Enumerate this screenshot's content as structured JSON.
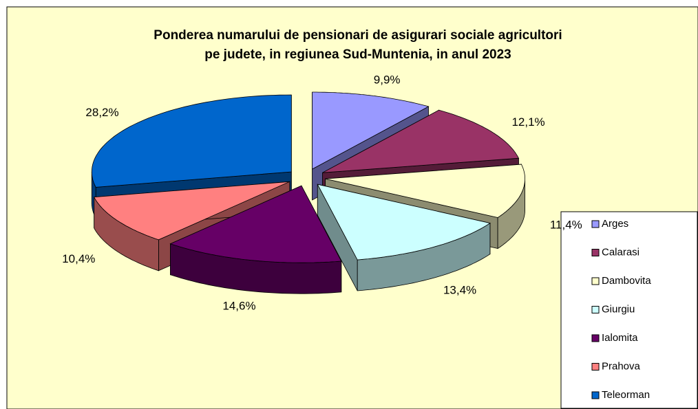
{
  "chart_data": {
    "type": "pie3d",
    "title": [
      "Ponderea numarului de pensionari de asigurari sociale agricultori",
      "pe judete, in regiunea Sud-Muntenia, in anul 2023"
    ],
    "categories": [
      "Arges",
      "Calarasi",
      "Dambovita",
      "Giurgiu",
      "Ialomita",
      "Prahova",
      "Teleorman"
    ],
    "values": [
      9.9,
      12.1,
      11.4,
      13.4,
      14.6,
      10.4,
      28.2
    ],
    "value_labels": [
      "9,9%",
      "12,1%",
      "11,4%",
      "13,4%",
      "14,6%",
      "10,4%",
      "28,2%"
    ],
    "colors": [
      "#9999ff",
      "#993366",
      "#ffffcc",
      "#ccffff",
      "#660066",
      "#ff8080",
      "#0066cc"
    ],
    "legend": "right"
  }
}
